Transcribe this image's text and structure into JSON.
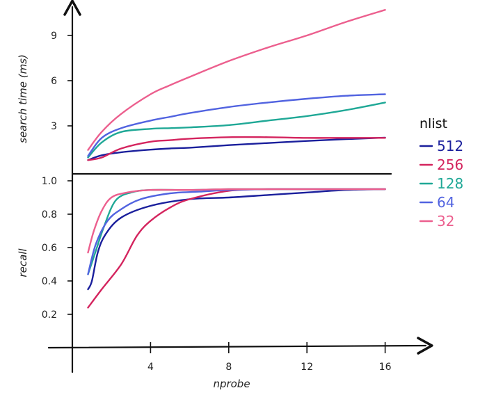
{
  "chart_data": [
    {
      "type": "line",
      "ylabel": "search time (ms)",
      "yticks": [
        3,
        6,
        9
      ],
      "ylim": [
        1,
        11
      ],
      "xlim": [
        0,
        18
      ],
      "series": [
        {
          "name": "512",
          "color": "#1a1f9c",
          "x": [
            0.8,
            1.5,
            2.5,
            4,
            5,
            6,
            8,
            10,
            12,
            14,
            16
          ],
          "y": [
            0.73,
            1.05,
            1.25,
            1.42,
            1.5,
            1.55,
            1.72,
            1.86,
            2.0,
            2.12,
            2.22
          ]
        },
        {
          "name": "256",
          "color": "#d4245e",
          "x": [
            0.8,
            1.5,
            2.5,
            4,
            5,
            6,
            8,
            10,
            12,
            14,
            16
          ],
          "y": [
            0.73,
            0.9,
            1.5,
            1.95,
            2.05,
            2.15,
            2.25,
            2.25,
            2.2,
            2.2,
            2.2
          ]
        },
        {
          "name": "128",
          "color": "#1fa896",
          "x": [
            0.8,
            1.5,
            2.5,
            4,
            5,
            6,
            8,
            10,
            12,
            14,
            16
          ],
          "y": [
            0.9,
            1.9,
            2.6,
            2.8,
            2.85,
            2.9,
            3.05,
            3.35,
            3.65,
            4.05,
            4.55
          ]
        },
        {
          "name": "64",
          "color": "#5163e0",
          "x": [
            0.8,
            1.5,
            2.5,
            4,
            5,
            6,
            8,
            10,
            12,
            14,
            16
          ],
          "y": [
            1.0,
            2.2,
            2.85,
            3.35,
            3.6,
            3.85,
            4.25,
            4.55,
            4.8,
            5.0,
            5.1
          ]
        },
        {
          "name": "32",
          "color": "#ec5f8e",
          "x": [
            0.8,
            1.5,
            2.5,
            4,
            5,
            6,
            8,
            10,
            12,
            14,
            16
          ],
          "y": [
            1.4,
            2.6,
            3.8,
            5.1,
            5.7,
            6.25,
            7.3,
            8.2,
            9.0,
            9.9,
            10.7
          ]
        }
      ]
    },
    {
      "type": "line",
      "ylabel": "recall",
      "xlabel": "nprobe",
      "xticks": [
        4,
        8,
        12,
        16
      ],
      "yticks": [
        0.2,
        0.4,
        0.6,
        0.8,
        1.0
      ],
      "ylim": [
        0,
        1.0
      ],
      "xlim": [
        0,
        18
      ],
      "series": [
        {
          "name": "512",
          "color": "#1a1f9c",
          "x": [
            0.8,
            1.0,
            1.3,
            1.7,
            2.5,
            4,
            6,
            8,
            10,
            12,
            14,
            16
          ],
          "y": [
            0.35,
            0.4,
            0.57,
            0.68,
            0.78,
            0.85,
            0.89,
            0.9,
            0.915,
            0.93,
            0.945,
            0.95
          ]
        },
        {
          "name": "256",
          "color": "#d4245e",
          "x": [
            0.8,
            1.5,
            2.5,
            3.3,
            4,
            5,
            6,
            8,
            10,
            12,
            14,
            16
          ],
          "y": [
            0.24,
            0.35,
            0.5,
            0.67,
            0.76,
            0.84,
            0.89,
            0.94,
            0.95,
            0.95,
            0.95,
            0.95
          ]
        },
        {
          "name": "128",
          "color": "#1fa896",
          "x": [
            0.8,
            1.2,
            1.6,
            2.2,
            3,
            4,
            6,
            8,
            10,
            12,
            14,
            16
          ],
          "y": [
            0.44,
            0.58,
            0.72,
            0.88,
            0.93,
            0.945,
            0.945,
            0.95,
            0.95,
            0.95,
            0.95,
            0.95
          ]
        },
        {
          "name": "64",
          "color": "#5163e0",
          "x": [
            0.8,
            1.2,
            1.8,
            2.5,
            3.5,
            5,
            6.5,
            8,
            10,
            12,
            14,
            16
          ],
          "y": [
            0.44,
            0.62,
            0.76,
            0.83,
            0.89,
            0.925,
            0.935,
            0.945,
            0.95,
            0.95,
            0.95,
            0.95
          ]
        },
        {
          "name": "32",
          "color": "#ec5f8e",
          "x": [
            0.8,
            1.1,
            1.5,
            2,
            2.8,
            4,
            6,
            8,
            10,
            12,
            14,
            16
          ],
          "y": [
            0.57,
            0.7,
            0.82,
            0.9,
            0.93,
            0.945,
            0.945,
            0.95,
            0.95,
            0.95,
            0.95,
            0.95
          ]
        }
      ]
    }
  ],
  "legend": {
    "title": "nlist",
    "items": [
      {
        "label": "512",
        "color": "#1a1f9c"
      },
      {
        "label": "256",
        "color": "#d4245e"
      },
      {
        "label": "128",
        "color": "#1fa896"
      },
      {
        "label": "64",
        "color": "#5163e0"
      },
      {
        "label": "32",
        "color": "#ec5f8e"
      }
    ]
  }
}
